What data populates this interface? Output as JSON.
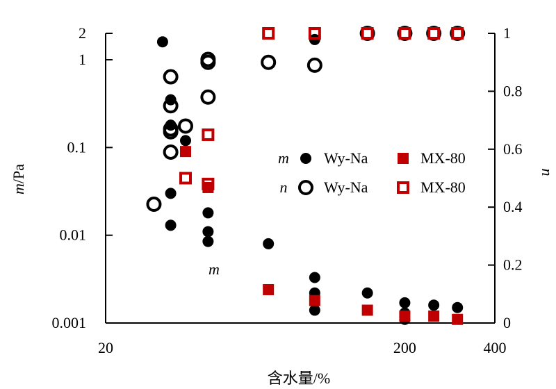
{
  "chart_data": {
    "type": "scatter",
    "xlabel": "含水量/%",
    "x_scale": "log",
    "xlim": [
      20,
      400
    ],
    "x_ticks": [
      "20",
      "200",
      "400"
    ],
    "y_left": {
      "label_var": "m",
      "label_unit": "/Pa",
      "scale": "log",
      "lim": [
        0.001,
        2
      ],
      "ticks": [
        "0.001",
        "0.01",
        "0.1",
        "1",
        "2"
      ]
    },
    "y_right": {
      "label": "n",
      "scale": "linear",
      "lim": [
        0,
        1
      ],
      "ticks": [
        "0",
        "0.2",
        "0.4",
        "0.6",
        "0.8",
        "1"
      ]
    },
    "annotation": "m",
    "legend": [
      {
        "var": "m",
        "name": "Wy-Na",
        "marker": "filled-circle",
        "color": "#000000"
      },
      {
        "var": "",
        "name": "MX-80",
        "marker": "filled-square",
        "color": "#c00000"
      },
      {
        "var": "n",
        "name": "Wy-Na",
        "marker": "open-circle",
        "color": "#000000"
      },
      {
        "var": "",
        "name": "MX-80",
        "marker": "open-square",
        "color": "#c00000"
      }
    ],
    "series": [
      {
        "name": "Wy-Na",
        "param": "m",
        "axis": "left",
        "marker": "filled-circle",
        "color": "#000000",
        "points": [
          [
            31,
            1.6
          ],
          [
            33,
            0.35
          ],
          [
            33,
            0.18
          ],
          [
            33,
            0.03
          ],
          [
            33,
            0.013
          ],
          [
            37,
            0.12
          ],
          [
            44,
            0.018
          ],
          [
            44,
            0.011
          ],
          [
            44,
            0.0085
          ],
          [
            70,
            0.008
          ],
          [
            100,
            1.7
          ],
          [
            100,
            0.0033
          ],
          [
            100,
            0.0022
          ],
          [
            100,
            0.0014
          ],
          [
            150,
            0.0022
          ],
          [
            200,
            0.0017
          ],
          [
            200,
            0.0013
          ],
          [
            200,
            0.0011
          ],
          [
            250,
            0.0016
          ],
          [
            300,
            0.0015
          ]
        ]
      },
      {
        "name": "MX-80",
        "param": "m",
        "axis": "left",
        "marker": "filled-square",
        "color": "#c00000",
        "points": [
          [
            37,
            0.09
          ],
          [
            44,
            0.035
          ],
          [
            70,
            0.0024
          ],
          [
            100,
            0.0018
          ],
          [
            150,
            0.0014
          ],
          [
            200,
            0.0012
          ],
          [
            250,
            0.0012
          ],
          [
            300,
            0.0011
          ]
        ]
      },
      {
        "name": "Wy-Na",
        "param": "n",
        "axis": "right",
        "marker": "open-circle",
        "color": "#000000",
        "points": [
          [
            29,
            0.41
          ],
          [
            33,
            0.85
          ],
          [
            33,
            0.75
          ],
          [
            33,
            0.67
          ],
          [
            33,
            0.66
          ],
          [
            33,
            0.59
          ],
          [
            37,
            0.68
          ],
          [
            44,
            0.91
          ],
          [
            44,
            0.9
          ],
          [
            44,
            0.78
          ],
          [
            70,
            0.9
          ],
          [
            100,
            0.89
          ],
          [
            150,
            1.0
          ],
          [
            200,
            1.0
          ],
          [
            250,
            1.0
          ],
          [
            300,
            1.0
          ]
        ]
      },
      {
        "name": "MX-80",
        "param": "n",
        "axis": "right",
        "marker": "open-square",
        "color": "#c00000",
        "points": [
          [
            37,
            0.5
          ],
          [
            44,
            0.65
          ],
          [
            44,
            0.48
          ],
          [
            70,
            1.0
          ],
          [
            100,
            1.0
          ],
          [
            150,
            1.0
          ],
          [
            200,
            1.0
          ],
          [
            250,
            1.0
          ],
          [
            300,
            1.0
          ]
        ]
      }
    ]
  }
}
